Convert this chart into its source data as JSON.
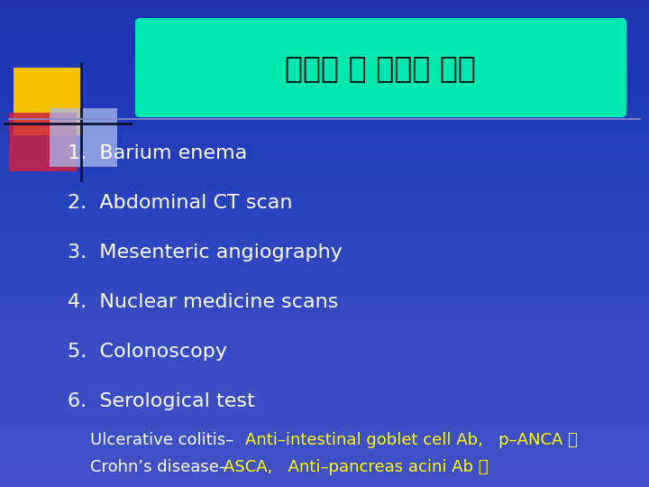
{
  "title": "염증성 장 질환의 진단",
  "bg_color": "#2233bb",
  "title_box_color": "#00e8b0",
  "title_text_color": "#111111",
  "line_color": "#8888cc",
  "items": [
    "1.  Barium enema",
    "2.  Abdominal CT scan",
    "3.  Mesenteric angiography",
    "4.  Nuclear medicine scans",
    "5.  Colonoscopy",
    "6.  Serological test"
  ],
  "item_color": "#ffffff",
  "sub1_prefix": "Ulcerative colitis– ",
  "sub1_prefix_color": "#ffffff",
  "sub1_suffix": "Anti–intestinal goblet cell Ab,   p–ANCA 등",
  "sub1_suffix_color": "#ffff00",
  "sub2_prefix": "Crohn’s disease– ",
  "sub2_prefix_color": "#ffffff",
  "sub2_suffix": "ASCA,   Anti–pancreas acini Ab 등",
  "sub2_suffix_color": "#ffff00",
  "item_fontsize": 16,
  "title_fontsize": 24,
  "sub_fontsize": 13
}
